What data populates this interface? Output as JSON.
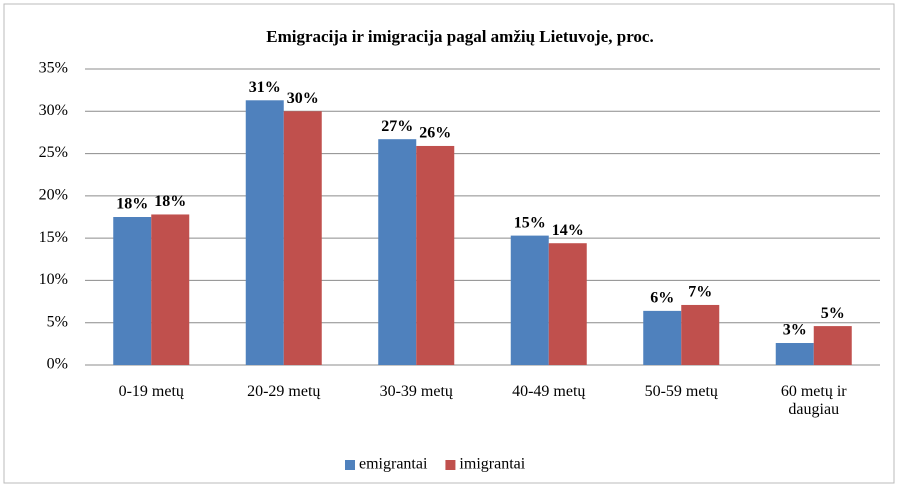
{
  "chart_data": {
    "type": "bar",
    "title": "Emigracija ir imigracija pagal amžių Lietuvoje, proc.",
    "categories": [
      "0-19 metų",
      "20-29 metų",
      "30-39 metų",
      "40-49 metų",
      "50-59 metų",
      "60 metų ir daugiau"
    ],
    "series": [
      {
        "name": "emigrantai",
        "color": "#4f81bd",
        "values": [
          17.5,
          31.3,
          26.7,
          15.3,
          6.4,
          2.6
        ],
        "value_labels": [
          "18%",
          "31%",
          "27%",
          "15%",
          "6%",
          "3%"
        ]
      },
      {
        "name": "imigrantai",
        "color": "#c0504d",
        "values": [
          17.8,
          30.0,
          25.9,
          14.4,
          7.1,
          4.6
        ],
        "value_labels": [
          "18%",
          "30%",
          "26%",
          "14%",
          "7%",
          "5%"
        ]
      }
    ],
    "ylim": [
      0,
      35
    ],
    "yticks": [
      {
        "value": 0,
        "label": "0%"
      },
      {
        "value": 5,
        "label": "5%"
      },
      {
        "value": 10,
        "label": "10%"
      },
      {
        "value": 15,
        "label": "15%"
      },
      {
        "value": 20,
        "label": "20%"
      },
      {
        "value": 25,
        "label": "25%"
      },
      {
        "value": 30,
        "label": "30%"
      },
      {
        "value": 35,
        "label": "35%"
      }
    ],
    "grid": true,
    "legend": "bottom"
  }
}
